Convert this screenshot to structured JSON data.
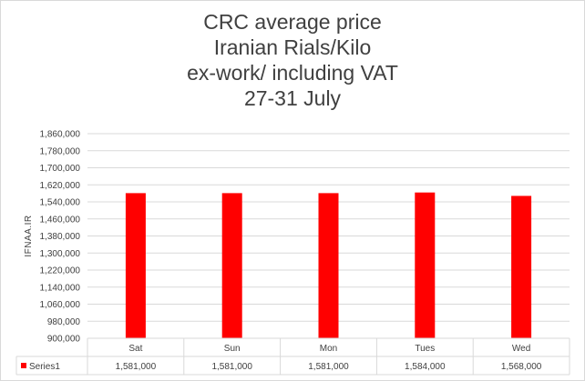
{
  "chart_data": {
    "type": "bar",
    "title": [
      "CRC average price",
      "Iranian Rials/Kilo",
      "ex-work/ including VAT",
      "27-31  July"
    ],
    "ylabel": "IFNAA.IR",
    "ylim": [
      900000,
      1860000
    ],
    "yticks": [
      900000,
      980000,
      1060000,
      1140000,
      1220000,
      1300000,
      1380000,
      1460000,
      1540000,
      1620000,
      1700000,
      1780000,
      1860000
    ],
    "ytick_labels": [
      "900,000",
      "980,000",
      "1,060,000",
      "1,140,000",
      "1,220,000",
      "1,300,000",
      "1,380,000",
      "1,460,000",
      "1,540,000",
      "1,620,000",
      "1,700,000",
      "1,780,000",
      "1,860,000"
    ],
    "categories": [
      "Sat",
      "Sun",
      "Mon",
      "Tues",
      "Wed"
    ],
    "grid": true,
    "legend": "data-table",
    "series": [
      {
        "name": "Series1",
        "color": "#ff0000",
        "values": [
          1581000,
          1581000,
          1581000,
          1584000,
          1568000
        ],
        "value_labels": [
          "1,581,000",
          "1,581,000",
          "1,581,000",
          "1,584,000",
          "1,568,000"
        ]
      }
    ]
  }
}
